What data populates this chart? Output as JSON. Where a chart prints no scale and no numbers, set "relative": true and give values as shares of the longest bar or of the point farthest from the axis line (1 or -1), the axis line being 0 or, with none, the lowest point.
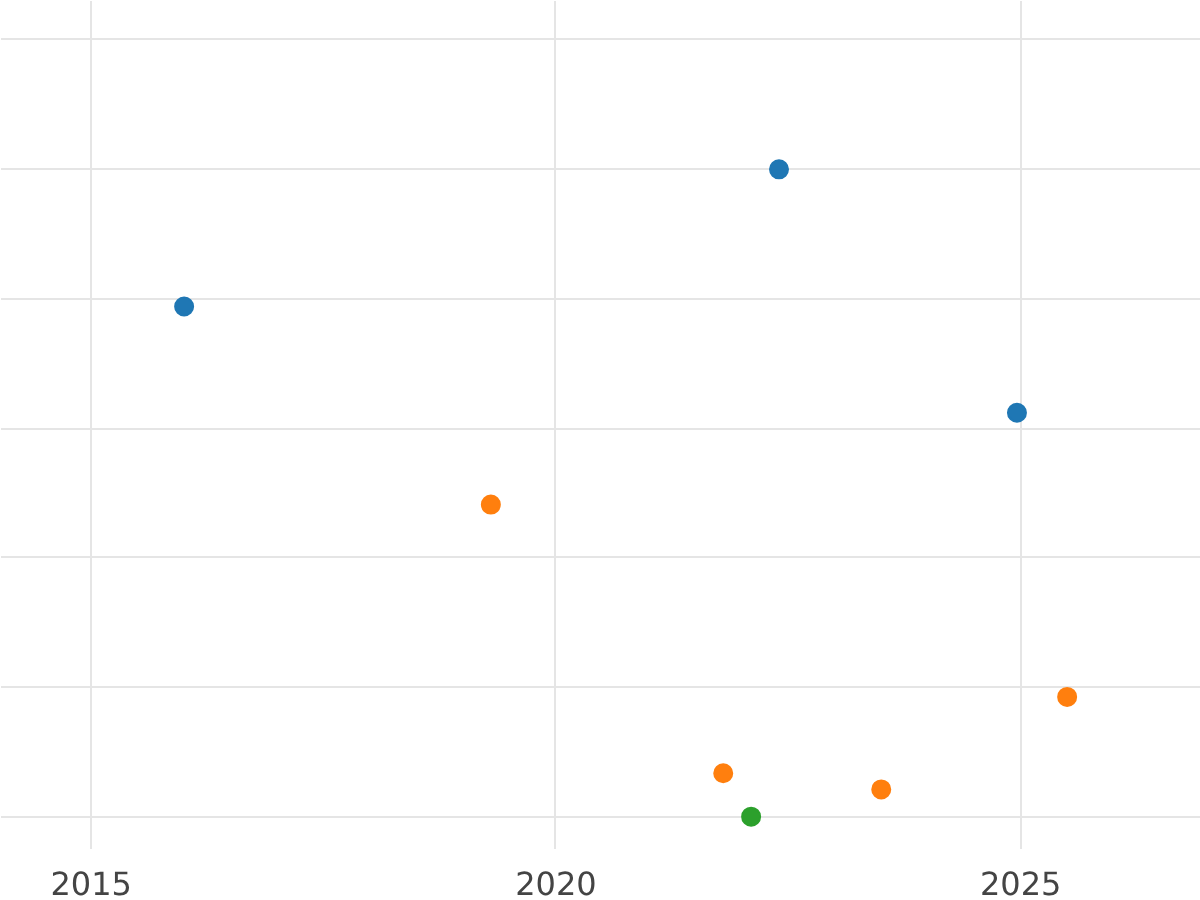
{
  "chart_data": {
    "type": "scatter",
    "relative": true,
    "xlim": [
      2014.03,
      2026.94
    ],
    "xticks": [
      2015,
      2020,
      2025
    ],
    "grid": true,
    "tick_labels": "x",
    "marker": "circle",
    "series": [
      {
        "color": "#1f77b4",
        "x": [
          2016.0,
          2022.4,
          2024.96
        ],
        "values": [
          0.788,
          1.0,
          0.624
        ]
      },
      {
        "color": "#ff7f0e",
        "x": [
          2019.3,
          2021.8,
          2023.5,
          2025.5
        ],
        "values": [
          0.482,
          0.067,
          0.042,
          0.185
        ]
      },
      {
        "color": "#2ca02c",
        "x": [
          2022.1
        ],
        "values": [
          0.0
        ]
      }
    ]
  }
}
